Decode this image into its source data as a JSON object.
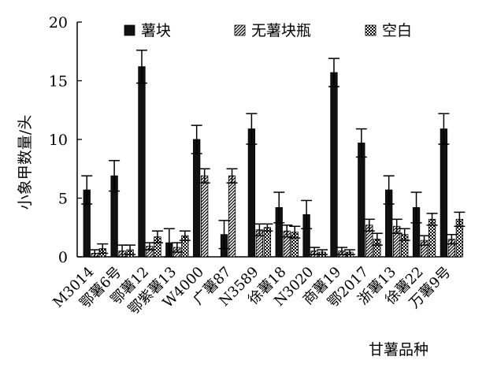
{
  "chart_data": {
    "type": "bar",
    "ylabel": "小象甲数量/头",
    "xlabel": "甘薯品种",
    "ylim": [
      0,
      20
    ],
    "yticks": [
      0,
      5,
      10,
      15,
      20
    ],
    "legend_position": "top",
    "categories": [
      "M3014",
      "鄂薯6号",
      "鄂薯12",
      "鄂紫薯13",
      "W4000",
      "广薯87",
      "N3589",
      "徐薯18",
      "N3020",
      "商薯19",
      "鄂2017",
      "浙薯13",
      "徐薯22",
      "万薯9号"
    ],
    "series": [
      {
        "name": "薯块",
        "pattern": "solid",
        "values": [
          5.7,
          6.9,
          16.2,
          1.2,
          10.0,
          1.9,
          10.9,
          4.2,
          3.6,
          15.7,
          9.7,
          5.7,
          4.2,
          10.9
        ],
        "errors": [
          1.2,
          1.3,
          1.4,
          1.2,
          1.2,
          1.2,
          1.3,
          1.3,
          1.2,
          1.2,
          1.2,
          1.2,
          1.3,
          1.3
        ]
      },
      {
        "name": "无薯块瓶",
        "pattern": "diagonal",
        "values": [
          0.3,
          0.5,
          0.9,
          0.8,
          6.9,
          6.9,
          2.3,
          2.2,
          0.5,
          0.5,
          2.7,
          2.6,
          1.4,
          1.5
        ],
        "errors": [
          0.3,
          0.5,
          0.3,
          0.4,
          0.6,
          0.6,
          0.5,
          0.5,
          0.3,
          0.3,
          0.5,
          0.6,
          0.4,
          0.4
        ]
      },
      {
        "name": "空白",
        "pattern": "checker",
        "values": [
          0.7,
          0.6,
          1.7,
          1.8,
          0.0,
          0.0,
          2.5,
          2.1,
          0.4,
          0.4,
          1.5,
          1.9,
          3.2,
          3.2
        ],
        "errors": [
          0.4,
          0.4,
          0.5,
          0.4,
          0.0,
          0.0,
          0.3,
          0.5,
          0.2,
          0.2,
          0.5,
          0.5,
          0.5,
          0.6
        ]
      }
    ],
    "colors": {
      "bar": "#111111",
      "axis": "#000000",
      "background": "#ffffff"
    }
  }
}
